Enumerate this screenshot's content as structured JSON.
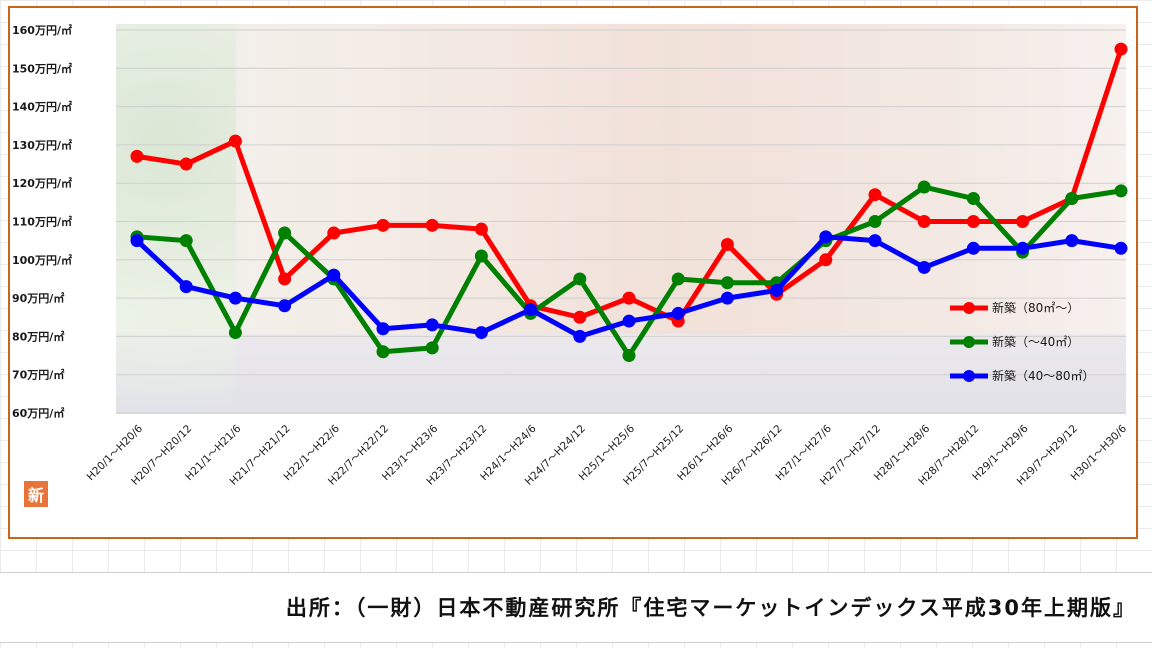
{
  "chart_data": {
    "type": "line",
    "y_unit_suffix": "万円/㎡",
    "ylim": [
      60,
      160
    ],
    "yticks": [
      60,
      70,
      80,
      90,
      100,
      110,
      120,
      130,
      140,
      150,
      160
    ],
    "categories": [
      "H20/1～H20/6",
      "H20/7～H20/12",
      "H21/1～H21/6",
      "H21/7～H21/12",
      "H22/1～H22/6",
      "H22/7～H22/12",
      "H23/1～H23/6",
      "H23/7～H23/12",
      "H24/1～H24/6",
      "H24/7～H24/12",
      "H25/1～H25/6",
      "H25/7～H25/12",
      "H26/1～H26/6",
      "H26/7～H26/12",
      "H27/1～H27/6",
      "H27/7～H27/12",
      "H28/1～H28/6",
      "H28/7～H28/12",
      "H29/1～H29/6",
      "H29/7～H29/12",
      "H30/1～H30/6"
    ],
    "series": [
      {
        "name": "新築（80㎡～）",
        "color": "#ff0000",
        "values": [
          127,
          125,
          131,
          95,
          107,
          109,
          109,
          108,
          88,
          85,
          90,
          84,
          104,
          91,
          100,
          117,
          110,
          110,
          110,
          116,
          155
        ]
      },
      {
        "name": "新築（～40㎡）",
        "color": "#008000",
        "values": [
          106,
          105,
          81,
          107,
          95,
          76,
          77,
          101,
          86,
          95,
          75,
          95,
          94,
          94,
          105,
          110,
          119,
          116,
          102,
          116,
          118
        ]
      },
      {
        "name": "新築（40～80㎡）",
        "color": "#0000ff",
        "values": [
          105,
          93,
          90,
          88,
          96,
          82,
          83,
          81,
          87,
          80,
          84,
          86,
          90,
          92,
          106,
          105,
          98,
          103,
          103,
          105,
          103
        ]
      }
    ],
    "grid": true,
    "legend_position": "right"
  },
  "badge_text": "新",
  "source": "出所：（一財）日本不動産研究所『住宅マーケットインデックス平成30年上期版』"
}
